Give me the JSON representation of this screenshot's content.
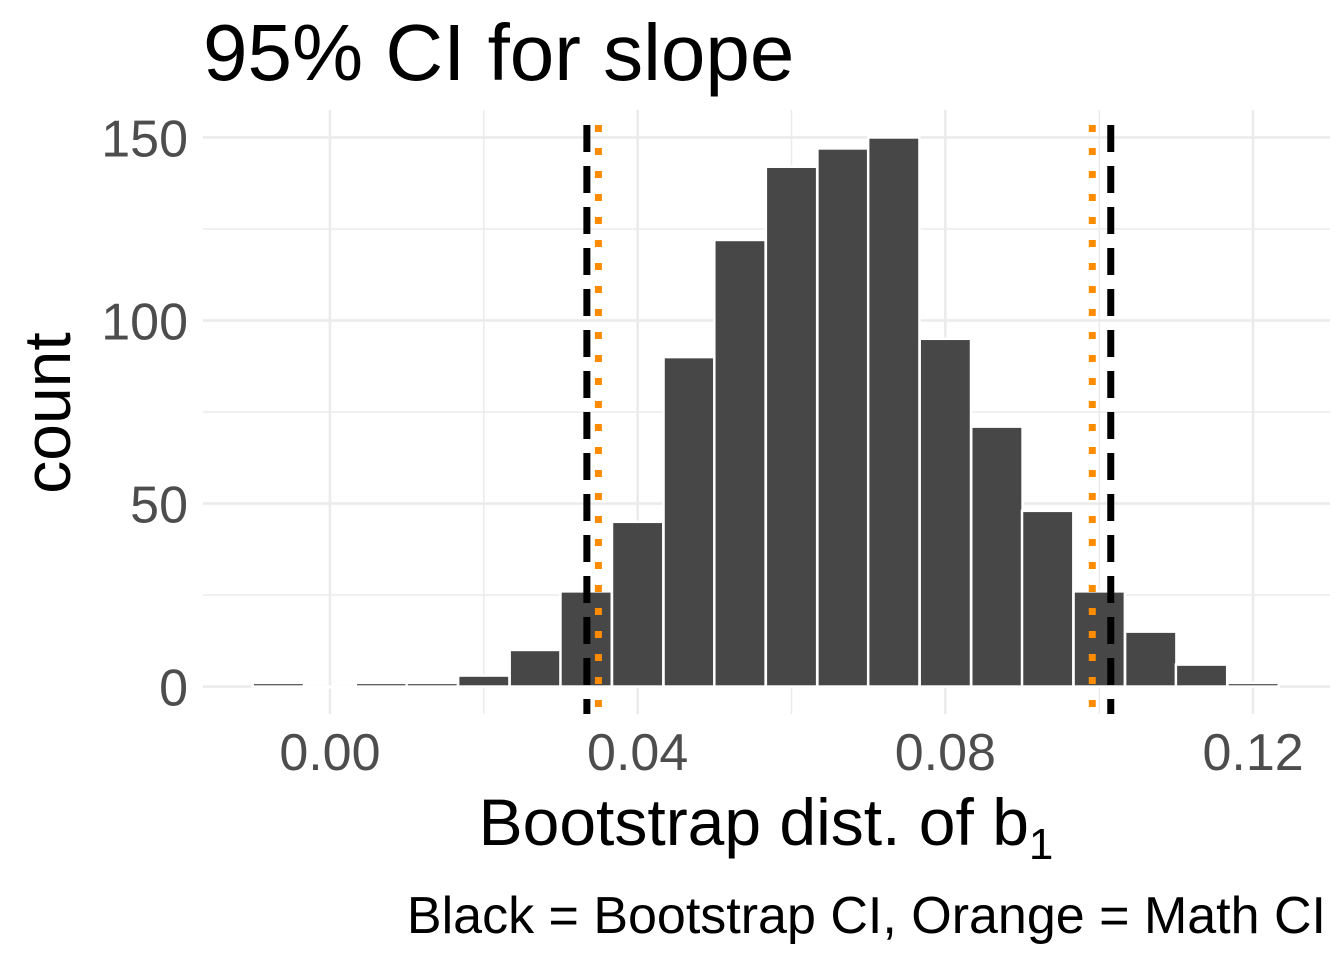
{
  "chart_data": {
    "type": "bar",
    "title": "95% CI for slope",
    "xlabel": "Bootstrap dist. of b",
    "xlabel_subscript": "1",
    "ylabel": "count",
    "caption": "Black = Bootstrap CI, Orange = Math CI",
    "xlim": [
      -0.0165,
      0.13
    ],
    "ylim": [
      -7.5,
      157.5
    ],
    "x_ticks": [
      0.0,
      0.04,
      0.08,
      0.12
    ],
    "x_tick_labels": [
      "0.00",
      "0.04",
      "0.08",
      "0.12"
    ],
    "y_ticks": [
      0,
      50,
      100,
      150
    ],
    "y_tick_labels": [
      "0",
      "50",
      "100",
      "150"
    ],
    "bin_width": 0.00667,
    "bin_centers": [
      -0.0067,
      0.0,
      0.0067,
      0.0133,
      0.02,
      0.0267,
      0.0333,
      0.04,
      0.0467,
      0.0533,
      0.06,
      0.0667,
      0.0733,
      0.08,
      0.0867,
      0.0933,
      0.1,
      0.1067,
      0.1133,
      0.12
    ],
    "counts": [
      1,
      0,
      1,
      1,
      3,
      10,
      26,
      45,
      90,
      122,
      142,
      147,
      150,
      95,
      71,
      48,
      26,
      15,
      6,
      1
    ],
    "bootstrap_ci": [
      0.0334,
      0.1015
    ],
    "math_ci": [
      0.0349,
      0.0991
    ],
    "grid": true,
    "colors": {
      "bar_fill": "#474747",
      "bar_outline": "#ffffff",
      "grid": "#ebebeb",
      "bootstrap_ci_line": "#000000",
      "math_ci_line": "#ff8c00",
      "tick_text": "#4d4d4d"
    }
  }
}
